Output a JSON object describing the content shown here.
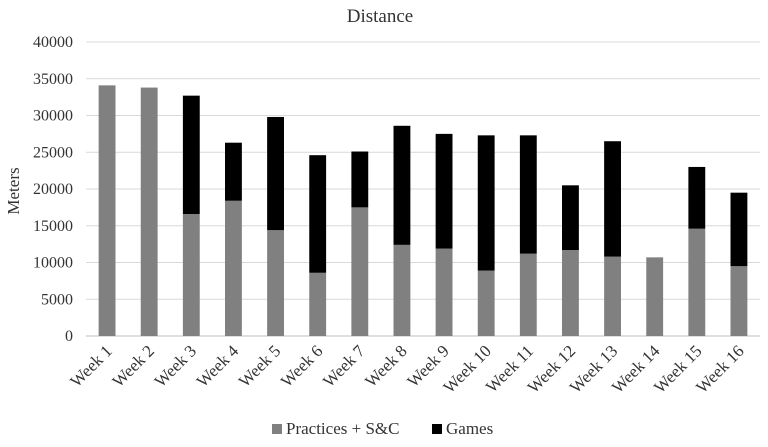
{
  "chart_data": {
    "type": "bar",
    "stacked": true,
    "title": "Distance",
    "xlabel": "",
    "ylabel": "Meters",
    "ylim": [
      0,
      40000
    ],
    "yticks": [
      0,
      5000,
      10000,
      15000,
      20000,
      25000,
      30000,
      35000,
      40000
    ],
    "grid": true,
    "legend_position": "bottom",
    "categories": [
      "Week 1",
      "Week 2",
      "Week 3",
      "Week 4",
      "Week 5",
      "Week 6",
      "Week 7",
      "Week 8",
      "Week 9",
      "Week 10",
      "Week 11",
      "Week 12",
      "Week 13",
      "Week 14",
      "Week 15",
      "Week 16"
    ],
    "series": [
      {
        "name": "Practices + S&C",
        "color": "#808080",
        "values": [
          34100,
          33800,
          16600,
          18400,
          14400,
          8600,
          17500,
          12400,
          11900,
          8900,
          11200,
          11700,
          10800,
          10700,
          14600,
          9500
        ]
      },
      {
        "name": "Games",
        "color": "#000000",
        "values": [
          0,
          0,
          16100,
          7900,
          15400,
          16000,
          7600,
          16200,
          15600,
          18400,
          16100,
          8800,
          15700,
          0,
          8400,
          10000
        ]
      }
    ]
  }
}
